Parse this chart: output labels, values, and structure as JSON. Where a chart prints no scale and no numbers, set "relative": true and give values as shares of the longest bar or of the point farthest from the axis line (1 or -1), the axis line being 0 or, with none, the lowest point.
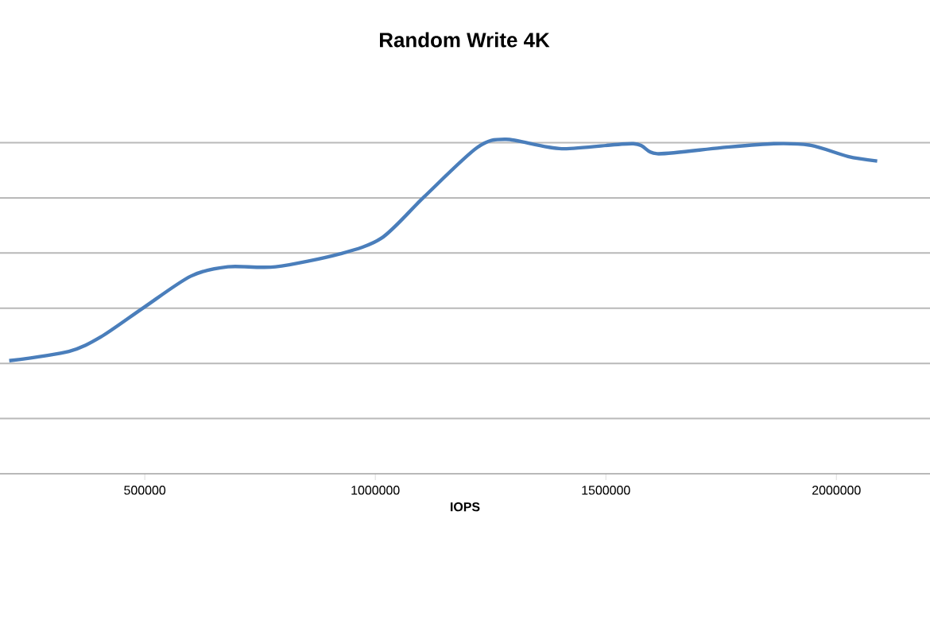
{
  "chart_data": {
    "type": "line",
    "title": "Random Write 4K",
    "xlabel": "IOPS",
    "relative": true,
    "xlim": [
      186000,
      2203000
    ],
    "xticks": [
      500000,
      1000000,
      1500000,
      2000000
    ],
    "grid": "y",
    "marker": "none",
    "line_style": "solid",
    "series": [
      {
        "color": "#4a7ebb",
        "x": [
          206000,
          335500,
          404500,
          496600,
          600000,
          680300,
          783800,
          921700,
          1013800,
          1105800,
          1220600,
          1283700,
          1404400,
          1559600,
          1611300,
          1749300,
          1864400,
          1944800,
          2025100,
          2088500
        ],
        "values": [
          0.338,
          0.366,
          0.409,
          0.496,
          0.591,
          0.619,
          0.619,
          0.657,
          0.705,
          0.828,
          0.975,
          1.0,
          0.972,
          0.987,
          0.957,
          0.975,
          0.987,
          0.982,
          0.949,
          0.935
        ]
      }
    ]
  }
}
